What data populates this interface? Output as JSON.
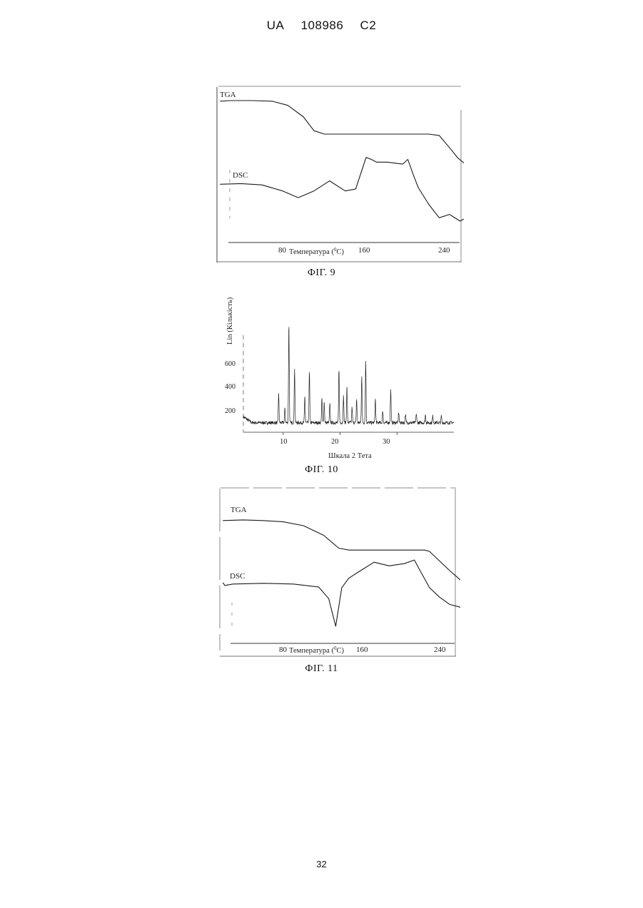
{
  "header": {
    "office": "UA",
    "number": "108986",
    "kind": "C2"
  },
  "page_number": "32",
  "figures": [
    {
      "caption": "ФІГ. 9",
      "tga_label": "TGA",
      "dsc_label": "DSC",
      "x_ticks": [
        "80",
        "160",
        "240"
      ],
      "x_axis_label": "Температура (",
      "x_axis_unit": "0",
      "x_axis_unit_tail": "C)"
    },
    {
      "caption": "ФІГ. 10",
      "y_axis_label": "Lin (Кількість)",
      "y_ticks": [
        "200",
        "400",
        "600"
      ],
      "x_ticks": [
        "10",
        "20",
        "30"
      ],
      "x_axis_label": "Шкала 2 Тета"
    },
    {
      "caption": "ФІГ. 11",
      "tga_label": "TGA",
      "dsc_label": "DSC",
      "x_ticks": [
        "80",
        "160",
        "240"
      ],
      "x_axis_label": "Температура (",
      "x_axis_unit": "0",
      "x_axis_unit_tail": "C)"
    }
  ],
  "chart_data": [
    {
      "type": "line",
      "figure": "ФІГ. 9",
      "xlabel": "Температура (0C)",
      "x_tick_values": [
        80,
        160,
        240
      ],
      "series": [
        {
          "name": "TGA",
          "x": [
            20,
            30,
            50,
            70,
            85,
            100,
            110,
            120,
            140,
            160,
            180,
            200,
            220,
            230,
            240,
            248,
            256
          ],
          "values": [
            0.98,
            0.99,
            0.99,
            0.98,
            0.92,
            0.75,
            0.55,
            0.5,
            0.5,
            0.5,
            0.5,
            0.5,
            0.5,
            0.48,
            0.3,
            0.15,
            0.05
          ]
        },
        {
          "name": "DSC",
          "x": [
            20,
            40,
            60,
            80,
            95,
            110,
            125,
            140,
            150,
            160,
            165,
            170,
            180,
            195,
            200,
            205,
            210,
            220,
            230,
            240,
            250,
            256
          ],
          "values": [
            0.55,
            0.56,
            0.54,
            0.45,
            0.35,
            0.45,
            0.6,
            0.45,
            0.48,
            0.95,
            0.92,
            0.88,
            0.88,
            0.85,
            0.92,
            0.7,
            0.5,
            0.25,
            0.05,
            0.1,
            0.0,
            0.05
          ]
        }
      ]
    },
    {
      "type": "line",
      "figure": "ФІГ. 10",
      "xlabel": "Шкала 2 Тета",
      "ylabel": "Lin (Кількість)",
      "xlim": [
        3,
        40
      ],
      "ylim": [
        0,
        900
      ],
      "baseline": 60,
      "peaks": [
        {
          "x": 9.2,
          "y": 280
        },
        {
          "x": 10.3,
          "y": 170
        },
        {
          "x": 11.0,
          "y": 820
        },
        {
          "x": 12.0,
          "y": 480
        },
        {
          "x": 13.8,
          "y": 260
        },
        {
          "x": 14.6,
          "y": 450
        },
        {
          "x": 16.8,
          "y": 240
        },
        {
          "x": 17.2,
          "y": 220
        },
        {
          "x": 18.2,
          "y": 200
        },
        {
          "x": 19.8,
          "y": 470
        },
        {
          "x": 20.6,
          "y": 260
        },
        {
          "x": 21.2,
          "y": 330
        },
        {
          "x": 22.1,
          "y": 180
        },
        {
          "x": 22.9,
          "y": 240
        },
        {
          "x": 23.8,
          "y": 420
        },
        {
          "x": 24.5,
          "y": 530
        },
        {
          "x": 26.2,
          "y": 240
        },
        {
          "x": 27.5,
          "y": 150
        },
        {
          "x": 28.9,
          "y": 310
        },
        {
          "x": 30.3,
          "y": 140
        },
        {
          "x": 31.5,
          "y": 120
        },
        {
          "x": 33.4,
          "y": 130
        },
        {
          "x": 35.0,
          "y": 120
        },
        {
          "x": 36.3,
          "y": 110
        },
        {
          "x": 37.8,
          "y": 110
        }
      ]
    },
    {
      "type": "line",
      "figure": "ФІГ. 11",
      "xlabel": "Температура (0C)",
      "x_tick_values": [
        80,
        160,
        240
      ],
      "series": [
        {
          "name": "TGA",
          "x": [
            20,
            40,
            60,
            80,
            100,
            120,
            135,
            145,
            160,
            180,
            200,
            220,
            225,
            235,
            245,
            256
          ],
          "values": [
            0.98,
            0.99,
            0.98,
            0.96,
            0.9,
            0.75,
            0.55,
            0.52,
            0.52,
            0.52,
            0.52,
            0.52,
            0.5,
            0.35,
            0.2,
            0.05
          ]
        },
        {
          "name": "DSC",
          "x": [
            20,
            22,
            30,
            60,
            90,
            115,
            125,
            132,
            138,
            145,
            155,
            170,
            185,
            200,
            210,
            215,
            225,
            235,
            245,
            256
          ],
          "values": [
            0.62,
            0.58,
            0.6,
            0.61,
            0.6,
            0.56,
            0.4,
            0.02,
            0.55,
            0.68,
            0.77,
            0.9,
            0.85,
            0.88,
            0.93,
            0.8,
            0.55,
            0.42,
            0.32,
            0.28
          ]
        }
      ]
    }
  ]
}
